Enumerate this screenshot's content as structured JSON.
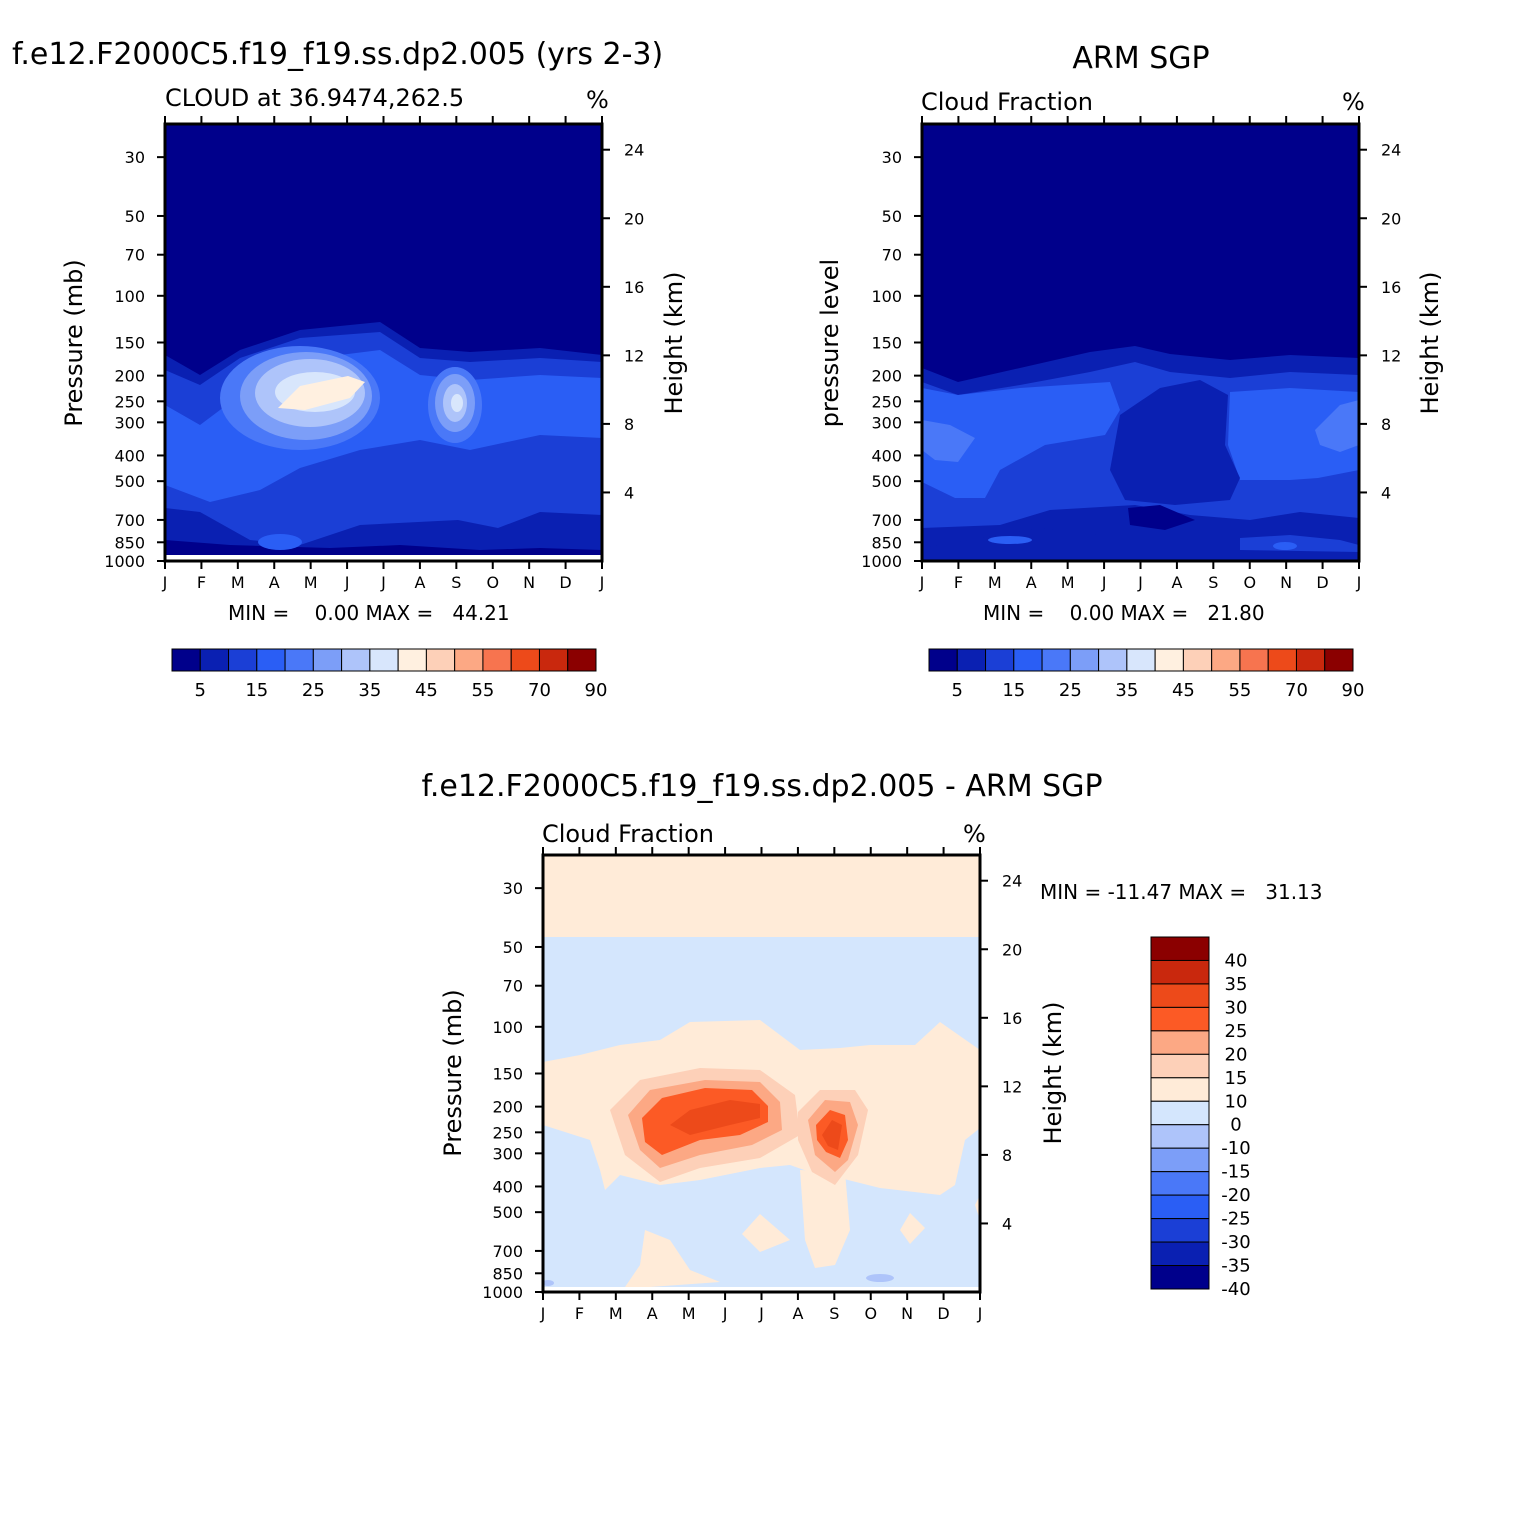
{
  "panels": [
    {
      "id": "model",
      "suptitle": "f.e12.F2000C5.f19_f19.ss.dp2.005 (yrs 2-3)",
      "left_title": "CLOUD at 36.9474,262.5",
      "units": "%",
      "ylabel_left": "Pressure (mb)",
      "ylabel_right": "Height (km)",
      "minmax": "MIN =    0.00 MAX =   44.21"
    },
    {
      "id": "obs",
      "suptitle": "ARM SGP",
      "left_title": "Cloud Fraction",
      "units": "%",
      "ylabel_left": "pressure level",
      "ylabel_right": "Height (km)",
      "minmax": "MIN =    0.00 MAX =   21.80"
    },
    {
      "id": "diff",
      "suptitle": "f.e12.F2000C5.f19_f19.ss.dp2.005 - ARM SGP",
      "left_title": "Cloud Fraction",
      "units": "%",
      "ylabel_left": "Pressure (mb)",
      "ylabel_right": "Height (km)",
      "minmax": "MIN = -11.47 MAX =   31.13"
    }
  ],
  "axes": {
    "months": [
      "J",
      "F",
      "M",
      "A",
      "M",
      "J",
      "J",
      "A",
      "S",
      "O",
      "N",
      "D",
      "J"
    ],
    "pressure_ticks": [
      "30",
      "50",
      "70",
      "100",
      "150",
      "200",
      "250",
      "300",
      "400",
      "500",
      "700",
      "850",
      "1000"
    ],
    "height_ticks": [
      "24",
      "20",
      "16",
      "12",
      "8",
      "4"
    ]
  },
  "colorbar_main": {
    "labels": [
      "5",
      "15",
      "25",
      "35",
      "45",
      "55",
      "70",
      "90"
    ],
    "colors": [
      "#00008b",
      "#0a20b2",
      "#1b3fd6",
      "#2a5ef5",
      "#4a78f8",
      "#7c9ef8",
      "#aec4fa",
      "#d8e6fc",
      "#fff0e0",
      "#fdd0b8",
      "#fca884",
      "#f7744f",
      "#ed4a1a",
      "#c9280d",
      "#8b0000"
    ]
  },
  "colorbar_diff": {
    "labels": [
      "40",
      "35",
      "30",
      "25",
      "20",
      "15",
      "10",
      "0",
      "-10",
      "-15",
      "-20",
      "-25",
      "-30",
      "-35",
      "-40"
    ],
    "colors": [
      "#8b0000",
      "#c9280d",
      "#ed4a1a",
      "#fc5a25",
      "#fca884",
      "#fdd0b8",
      "#ffebd8",
      "#d4e6fd",
      "#aec4fa",
      "#7c9ef8",
      "#4a78f8",
      "#2a5ef5",
      "#1b3fd6",
      "#0a20b2",
      "#00008b"
    ]
  },
  "chart_data": [
    {
      "type": "heatmap",
      "title": "CLOUD at 36.9474,262.5",
      "xlabel": "",
      "ylabel": "Pressure (mb)",
      "y2label": "Height (km)",
      "x": [
        "J",
        "F",
        "M",
        "A",
        "M",
        "J",
        "J",
        "A",
        "S",
        "O",
        "N",
        "D",
        "J"
      ],
      "y": [
        30,
        50,
        70,
        100,
        150,
        200,
        250,
        300,
        400,
        500,
        700,
        850,
        1000
      ],
      "ylim": [
        1000,
        30
      ],
      "y_scale": "log",
      "min": 0.0,
      "max": 44.21,
      "features": [
        {
          "peak_at": "May",
          "pressure_mb": 250,
          "value_approx": 42
        },
        {
          "peak_at": "Sep",
          "pressure_mb": 250,
          "value_approx": 38
        }
      ]
    },
    {
      "type": "heatmap",
      "title": "Cloud Fraction",
      "xlabel": "",
      "ylabel": "pressure level",
      "y2label": "Height (km)",
      "x": [
        "J",
        "F",
        "M",
        "A",
        "M",
        "J",
        "J",
        "A",
        "S",
        "O",
        "N",
        "D",
        "J"
      ],
      "y": [
        30,
        50,
        70,
        100,
        150,
        200,
        250,
        300,
        400,
        500,
        700,
        850,
        1000
      ],
      "ylim": [
        1000,
        30
      ],
      "y_scale": "log",
      "min": 0.0,
      "max": 21.8,
      "features": [
        {
          "peak_at": "Jan",
          "pressure_mb": 300,
          "value_approx": 20
        },
        {
          "peak_at": "Dec",
          "pressure_mb": 300,
          "value_approx": 20
        }
      ]
    },
    {
      "type": "heatmap",
      "title": "Cloud Fraction",
      "xlabel": "",
      "ylabel": "Pressure (mb)",
      "y2label": "Height (km)",
      "x": [
        "J",
        "F",
        "M",
        "A",
        "M",
        "J",
        "J",
        "A",
        "S",
        "O",
        "N",
        "D",
        "J"
      ],
      "y": [
        30,
        50,
        70,
        100,
        150,
        200,
        250,
        300,
        400,
        500,
        700,
        850,
        1000
      ],
      "ylim": [
        1000,
        30
      ],
      "y_scale": "log",
      "min": -11.47,
      "max": 31.13,
      "features": [
        {
          "peak_at": "May",
          "pressure_mb": 230,
          "value_approx": 30
        },
        {
          "peak_at": "Sep",
          "pressure_mb": 270,
          "value_approx": 30
        }
      ]
    }
  ]
}
